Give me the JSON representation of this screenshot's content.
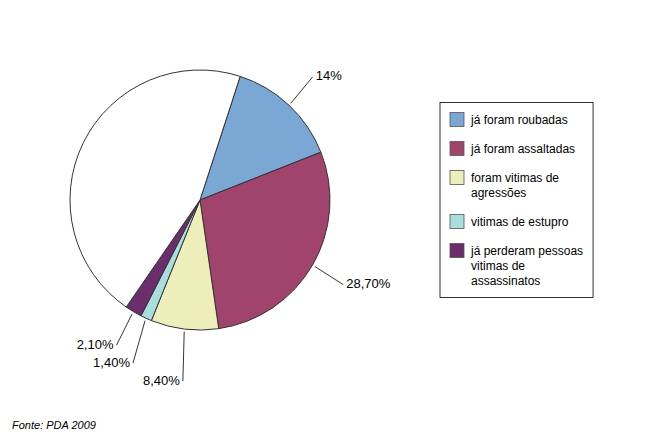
{
  "chart_data": {
    "type": "pie",
    "categories": [
      "já foram roubadas",
      "já foram assaltadas",
      "foram vitimas de\nagressões",
      "vitimas de estupro",
      "já perderam pessoas\nvitimas de\nassassinatos",
      null
    ],
    "values": [
      14.0,
      28.7,
      8.4,
      1.4,
      2.1,
      45.4
    ],
    "value_labels": [
      "14%",
      "28,70%",
      "8,40%",
      "1,40%",
      "2,10%",
      null
    ],
    "colors": [
      "#7BA7D4",
      "#A0446E",
      "#EEEEBB",
      "#AADDDD",
      "#6B2D6B",
      "#FFFFFF"
    ],
    "data_labels": true,
    "legend": "right",
    "annotations": [
      "Fonte: PDA 2009"
    ]
  }
}
